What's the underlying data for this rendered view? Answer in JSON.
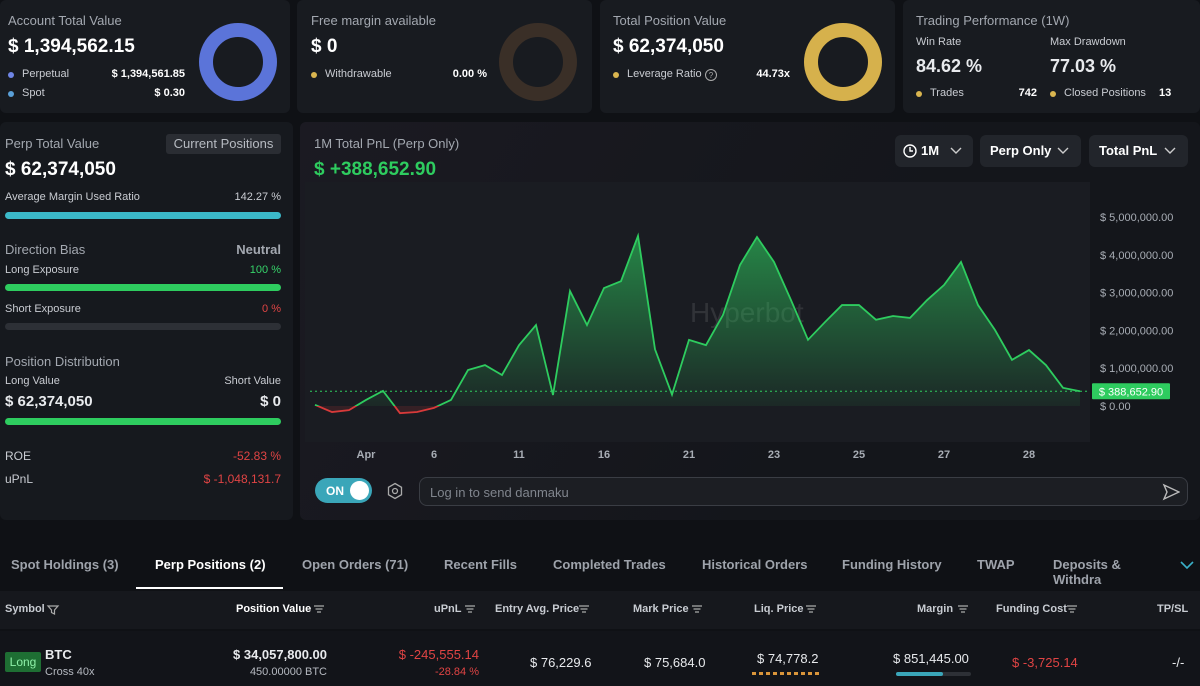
{
  "cards": [
    {
      "title": "Account Total Value",
      "value": "$ 1,394,562.15",
      "rows": [
        {
          "label": "Perpetual",
          "value": "$ 1,394,561.85"
        },
        {
          "label": "Spot",
          "value": "$ 0.30"
        }
      ]
    },
    {
      "title": "Free margin available",
      "value": "$ 0",
      "rows": [
        {
          "label": "Withdrawable",
          "value": "0.00 %"
        }
      ]
    },
    {
      "title": "Total Position Value",
      "value": "$ 62,374,050",
      "rows": [
        {
          "label": "Leverage Ratio",
          "value": "44.73x"
        }
      ]
    },
    {
      "title": "Trading Performance (1W)",
      "stats": [
        {
          "label": "Win Rate",
          "value": "84.62 %"
        },
        {
          "label": "Max Drawdown",
          "value": "77.03 %"
        }
      ],
      "rows": [
        {
          "label": "Trades",
          "value": "742"
        },
        {
          "label": "Closed Positions",
          "value": "13"
        }
      ]
    }
  ],
  "summary": {
    "perp_total_label": "Perp Total Value",
    "current_positions": "Current Positions",
    "perp_total_value": "$ 62,374,050",
    "margin_ratio_label": "Average Margin Used Ratio",
    "margin_ratio": "142.27 %",
    "direction_bias_label": "Direction Bias",
    "direction_bias": "Neutral",
    "long_exposure_label": "Long Exposure",
    "long_exposure": "100 %",
    "short_exposure_label": "Short Exposure",
    "short_exposure": "0 %",
    "distribution_label": "Position Distribution",
    "long_value_label": "Long Value",
    "short_value_label": "Short Value",
    "long_value": "$ 62,374,050",
    "short_value": "$ 0",
    "roe_label": "ROE",
    "roe": "-52.83 %",
    "upnl_label": "uPnL",
    "upnl": "$ -1,048,131.7"
  },
  "chart_data": {
    "type": "area",
    "title": "1M Total PnL (Perp Only)",
    "subtitle": "$ +388,652.90",
    "watermark": "Hyperbot",
    "categories": [
      null,
      null,
      null,
      "Apr",
      null,
      null,
      null,
      "6",
      null,
      null,
      null,
      null,
      "11",
      null,
      null,
      null,
      null,
      "16",
      null,
      null,
      null,
      null,
      "21",
      null,
      null,
      null,
      null,
      "23",
      null,
      null,
      null,
      null,
      "25",
      null,
      null,
      null,
      null,
      "27",
      null,
      null,
      null,
      null,
      "28",
      null,
      null,
      null
    ],
    "values": [
      30000,
      -160000,
      -110000,
      160000,
      400000,
      -190000,
      -160000,
      -50000,
      160000,
      950000,
      1080000,
      820000,
      1610000,
      2140000,
      290000,
      3040000,
      2140000,
      3120000,
      3300000,
      4500000,
      1500000,
      300000,
      1750000,
      1610000,
      2410000,
      3730000,
      4470000,
      3810000,
      2800000,
      1750000,
      2220000,
      2670000,
      2670000,
      2280000,
      2380000,
      2330000,
      2800000,
      3200000,
      3810000,
      2670000,
      2010000,
      1220000,
      1480000,
      1080000,
      480000,
      388652.9
    ],
    "value_labels": [
      null,
      null,
      null,
      null,
      null,
      null,
      null,
      null,
      null,
      null,
      null,
      null,
      null,
      null,
      null,
      null,
      null,
      null,
      null,
      null,
      null,
      null,
      null,
      null,
      null,
      null,
      null,
      null,
      null,
      null,
      null,
      null,
      null,
      null,
      null,
      null,
      null,
      null,
      null,
      null,
      null,
      null,
      null,
      null,
      null,
      "$ 388,652.90"
    ],
    "color": "#2ecc5f",
    "negative_color": "#d83a3a",
    "ylim": [
      -900000,
      5600000
    ],
    "yticks": [
      {
        "value": 0,
        "label": "$ 0.00"
      },
      {
        "value": 1000000,
        "label": "$ 1,000,000.00"
      },
      {
        "value": 2000000,
        "label": "$ 2,000,000.00"
      },
      {
        "value": 3000000,
        "label": "$ 3,000,000.00"
      },
      {
        "value": 4000000,
        "label": "$ 4,000,000.00"
      },
      {
        "value": 5000000,
        "label": "$ 5,000,000.00"
      }
    ],
    "grid": false
  },
  "controls": {
    "period": "1M",
    "scope": "Perp Only",
    "metric": "Total PnL",
    "danmaku_toggle": "ON",
    "danmaku_placeholder": "Log in to send danmaku"
  },
  "tabs": [
    "Spot Holdings (3)",
    "Perp Positions (2)",
    "Open Orders (71)",
    "Recent Fills",
    "Completed Trades",
    "Historical Orders",
    "Funding History",
    "TWAP",
    "Deposits & Withdra"
  ],
  "table": {
    "columns": [
      "Symbol",
      "Position Value",
      "uPnL",
      "Entry Avg. Price",
      "Mark Price",
      "Liq. Price",
      "Margin",
      "Funding Cost",
      "TP/SL"
    ],
    "rows": [
      {
        "side": "Long",
        "symbol": "BTC",
        "margin_mode": "Cross 40x",
        "position_value": "$ 34,057,800.00",
        "size": "450.00000 BTC",
        "upnl": "$ -245,555.14",
        "upnl_pct": "-28.84 %",
        "entry": "$ 76,229.6",
        "mark": "$ 75,684.0",
        "liq": "$ 74,778.2",
        "margin": "$ 851,445.00",
        "funding": "$ -3,725.14",
        "tpsl": "-/-"
      }
    ]
  }
}
